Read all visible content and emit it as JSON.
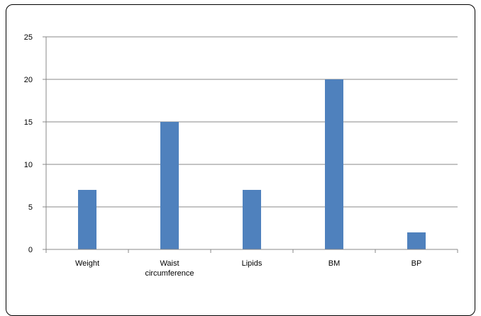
{
  "chart_data": {
    "type": "bar",
    "title": "",
    "xlabel": "",
    "ylabel": "",
    "categories": [
      "Weight",
      "Waist circumference",
      "Lipids",
      "BM",
      "BP"
    ],
    "category_lines": [
      [
        "Weight"
      ],
      [
        "Waist",
        "circumference"
      ],
      [
        "Lipids"
      ],
      [
        "BM"
      ],
      [
        "BP"
      ]
    ],
    "values": [
      7,
      15,
      7,
      20,
      2
    ],
    "ylim": [
      0,
      25
    ],
    "yticks": [
      0,
      5,
      10,
      15,
      20,
      25
    ],
    "grid": true,
    "legend": "none",
    "bar_color": "#4f81bd",
    "grid_color": "#888888",
    "axis_color": "#888888"
  }
}
